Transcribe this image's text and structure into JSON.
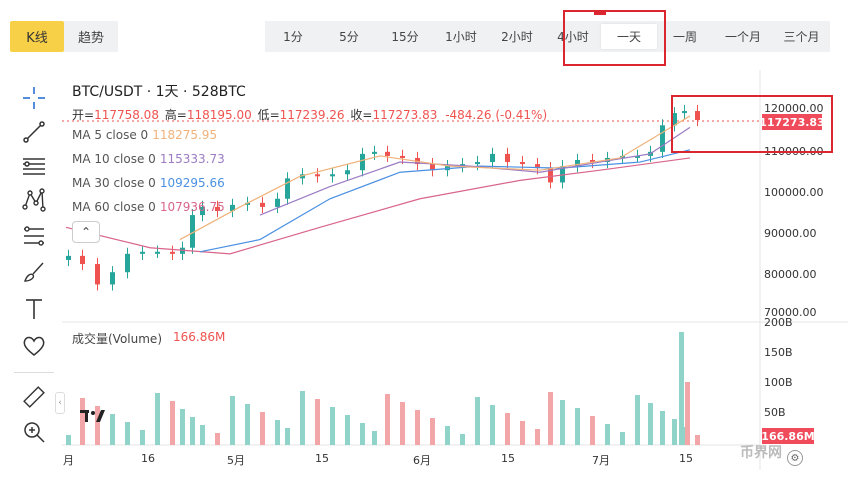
{
  "view_tabs": {
    "kline": "K线",
    "trend": "趋势"
  },
  "intervals": [
    "1分",
    "5分",
    "15分",
    "1小时",
    "2小时",
    "4小时",
    "一天",
    "一周",
    "一个月",
    "三个月"
  ],
  "active_interval": "一天",
  "symbol_title": "BTC/USDT · 1天 · 528BTC",
  "ohlc": {
    "open_label": "开=",
    "open": "117758.08",
    "high_label": "高=",
    "high": "118195.00",
    "low_label": "低=",
    "low": "117239.26",
    "close_label": "收=",
    "close": "117273.83",
    "change": "-484.26 (-0.41%)"
  },
  "ma": [
    {
      "label": "MA 5 close 0",
      "value": "118275.95",
      "color": "#f0b27a"
    },
    {
      "label": "MA 10 close 0",
      "value": "115333.73",
      "color": "#9b7bc4"
    },
    {
      "label": "MA 30 close 0",
      "value": "109295.66",
      "color": "#4a90e2"
    },
    {
      "label": "MA 60 close 0",
      "value": "107936.75",
      "color": "#d9658a"
    }
  ],
  "price_axis": [
    "120000.00",
    "110000.00",
    "100000.00",
    "90000.00",
    "80000.00",
    "70000.00"
  ],
  "current_price": "117273.83",
  "volume": {
    "label": "成交量(Volume)",
    "value": "166.86M",
    "axis": [
      "200B",
      "150B",
      "100B",
      "50B"
    ],
    "current": "166.86M"
  },
  "x_axis": [
    "月",
    "16",
    "5月",
    "15",
    "6月",
    "15",
    "7月",
    "15"
  ],
  "watermark": "币界网",
  "colors": {
    "up": "#26a69a",
    "down": "#ef5350",
    "accent": "#f7d047",
    "highlight": "#d9262f"
  },
  "icons": [
    "crosshair-icon",
    "trendline-icon",
    "horizontal-lines-icon",
    "pattern-icon",
    "fib-icon",
    "brush-icon",
    "text-icon",
    "heart-icon",
    "ruler-icon",
    "zoom-icon"
  ]
}
